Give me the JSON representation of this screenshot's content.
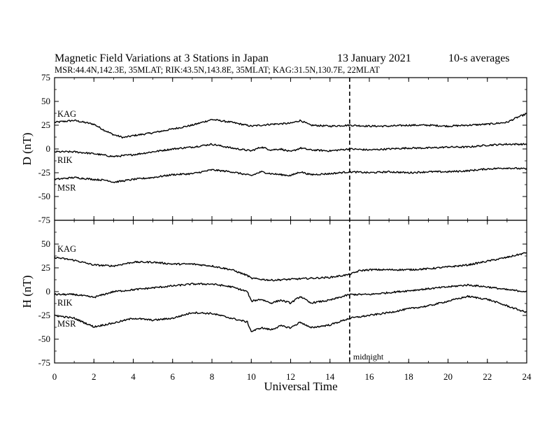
{
  "chart_data": {
    "type": "line",
    "title": "Magnetic Field Variations at 3 Stations in Japan",
    "date": "13 January 2021",
    "averaging": "10-s averages",
    "subtitle": "MSR:44.4N,142.3E, 35MLAT;  RIK:43.5N,143.8E, 35MLAT;  KAG:31.5N,130.7E, 22MLAT",
    "xlabel": "Universal Time",
    "xlim": [
      0,
      24
    ],
    "xticks": [
      "0",
      "2",
      "4",
      "6",
      "8",
      "10",
      "12",
      "14",
      "16",
      "18",
      "20",
      "22",
      "24"
    ],
    "annotation": {
      "label": "midnight",
      "x": 15
    },
    "panels": [
      {
        "id": "D",
        "ylabel": "D (nT)",
        "ylim": [
          -75,
          75
        ],
        "yticks": [
          "75",
          "50",
          "25",
          "0",
          "-25",
          "-50",
          "-75"
        ],
        "series": [
          {
            "name": "KAG",
            "points": [
              [
                0,
                28
              ],
              [
                1,
                30
              ],
              [
                2,
                26
              ],
              [
                2.5,
                20
              ],
              [
                3,
                15
              ],
              [
                3.5,
                12
              ],
              [
                4,
                14
              ],
              [
                5,
                17
              ],
              [
                6,
                21
              ],
              [
                7,
                25
              ],
              [
                8,
                31
              ],
              [
                9,
                28
              ],
              [
                10,
                24
              ],
              [
                11,
                26
              ],
              [
                12,
                27
              ],
              [
                12.5,
                30
              ],
              [
                13,
                25
              ],
              [
                14,
                24
              ],
              [
                15,
                25
              ],
              [
                16,
                24
              ],
              [
                17,
                24
              ],
              [
                18,
                25
              ],
              [
                19,
                25
              ],
              [
                20,
                24
              ],
              [
                21,
                25
              ],
              [
                22,
                26
              ],
              [
                23,
                28
              ],
              [
                23.5,
                33
              ],
              [
                24,
                37
              ]
            ]
          },
          {
            "name": "RIK",
            "points": [
              [
                0,
                -3
              ],
              [
                1,
                -3
              ],
              [
                2,
                -5
              ],
              [
                3,
                -8
              ],
              [
                4,
                -6
              ],
              [
                5,
                -3
              ],
              [
                6,
                0
              ],
              [
                7,
                2
              ],
              [
                8,
                5
              ],
              [
                8.5,
                3
              ],
              [
                9,
                1
              ],
              [
                10,
                -2
              ],
              [
                10.5,
                2
              ],
              [
                11,
                -1
              ],
              [
                11.5,
                0
              ],
              [
                12,
                -3
              ],
              [
                12.5,
                1
              ],
              [
                13,
                -1
              ],
              [
                14,
                -2
              ],
              [
                15,
                0
              ],
              [
                16,
                -1
              ],
              [
                17,
                0
              ],
              [
                18,
                1
              ],
              [
                19,
                1
              ],
              [
                20,
                2
              ],
              [
                21,
                2
              ],
              [
                22,
                4
              ],
              [
                23,
                5
              ],
              [
                24,
                5
              ]
            ]
          },
          {
            "name": "MSR",
            "points": [
              [
                0,
                -32
              ],
              [
                1,
                -30
              ],
              [
                2,
                -32
              ],
              [
                2.7,
                -33
              ],
              [
                3,
                -35
              ],
              [
                4,
                -32
              ],
              [
                5,
                -30
              ],
              [
                6,
                -27
              ],
              [
                7,
                -26
              ],
              [
                8,
                -22
              ],
              [
                9,
                -24
              ],
              [
                10,
                -28
              ],
              [
                10.5,
                -24
              ],
              [
                11,
                -26
              ],
              [
                12,
                -28
              ],
              [
                12.5,
                -24
              ],
              [
                13,
                -27
              ],
              [
                14,
                -26
              ],
              [
                15,
                -24
              ],
              [
                16,
                -25
              ],
              [
                17,
                -24
              ],
              [
                18,
                -25
              ],
              [
                19,
                -24
              ],
              [
                20,
                -24
              ],
              [
                21,
                -23
              ],
              [
                22,
                -21
              ],
              [
                23,
                -20
              ],
              [
                24,
                -21
              ]
            ]
          }
        ]
      },
      {
        "id": "H",
        "ylabel": "H (nT)",
        "ylim": [
          -75,
          75
        ],
        "yticks": [
          "75",
          "50",
          "25",
          "0",
          "-25",
          "-50",
          "-75"
        ],
        "series": [
          {
            "name": "KAG",
            "points": [
              [
                0,
                36
              ],
              [
                1,
                33
              ],
              [
                2,
                28
              ],
              [
                3,
                27
              ],
              [
                4,
                31
              ],
              [
                5,
                31
              ],
              [
                6,
                29
              ],
              [
                7,
                29
              ],
              [
                8,
                27
              ],
              [
                9,
                23
              ],
              [
                9.8,
                17
              ],
              [
                10,
                14
              ],
              [
                11,
                12
              ],
              [
                12,
                13
              ],
              [
                13,
                14
              ],
              [
                14,
                15
              ],
              [
                15,
                18
              ],
              [
                15.5,
                22
              ],
              [
                16,
                23
              ],
              [
                17,
                23
              ],
              [
                18,
                23
              ],
              [
                19,
                24
              ],
              [
                20,
                26
              ],
              [
                21,
                28
              ],
              [
                22,
                32
              ],
              [
                23,
                36
              ],
              [
                24,
                41
              ]
            ]
          },
          {
            "name": "RIK",
            "points": [
              [
                0,
                -3
              ],
              [
                1,
                -3
              ],
              [
                2,
                -6
              ],
              [
                3,
                0
              ],
              [
                4,
                2
              ],
              [
                5,
                4
              ],
              [
                6,
                6
              ],
              [
                7,
                8
              ],
              [
                8,
                8
              ],
              [
                9,
                5
              ],
              [
                9.8,
                0
              ],
              [
                10,
                -10
              ],
              [
                10.5,
                -8
              ],
              [
                11,
                -12
              ],
              [
                11.5,
                -9
              ],
              [
                12,
                -12
              ],
              [
                12.5,
                -5
              ],
              [
                13,
                -12
              ],
              [
                14,
                -9
              ],
              [
                15,
                -3
              ],
              [
                16,
                -3
              ],
              [
                17,
                -1
              ],
              [
                18,
                1
              ],
              [
                19,
                3
              ],
              [
                20,
                5
              ],
              [
                21,
                7
              ],
              [
                22,
                5
              ],
              [
                23,
                2
              ],
              [
                24,
                0
              ]
            ]
          },
          {
            "name": "MSR",
            "points": [
              [
                0,
                -25
              ],
              [
                1,
                -28
              ],
              [
                2,
                -37
              ],
              [
                3,
                -33
              ],
              [
                4,
                -28
              ],
              [
                5,
                -30
              ],
              [
                6,
                -28
              ],
              [
                7,
                -22
              ],
              [
                8,
                -23
              ],
              [
                9,
                -28
              ],
              [
                9.8,
                -32
              ],
              [
                10,
                -42
              ],
              [
                10.5,
                -38
              ],
              [
                11,
                -40
              ],
              [
                11.5,
                -36
              ],
              [
                12,
                -38
              ],
              [
                12.5,
                -32
              ],
              [
                13,
                -38
              ],
              [
                14,
                -35
              ],
              [
                15,
                -28
              ],
              [
                16,
                -25
              ],
              [
                17,
                -22
              ],
              [
                18,
                -18
              ],
              [
                19,
                -15
              ],
              [
                20,
                -10
              ],
              [
                21,
                -5
              ],
              [
                22,
                -8
              ],
              [
                23,
                -15
              ],
              [
                24,
                -22
              ]
            ]
          }
        ]
      }
    ]
  }
}
